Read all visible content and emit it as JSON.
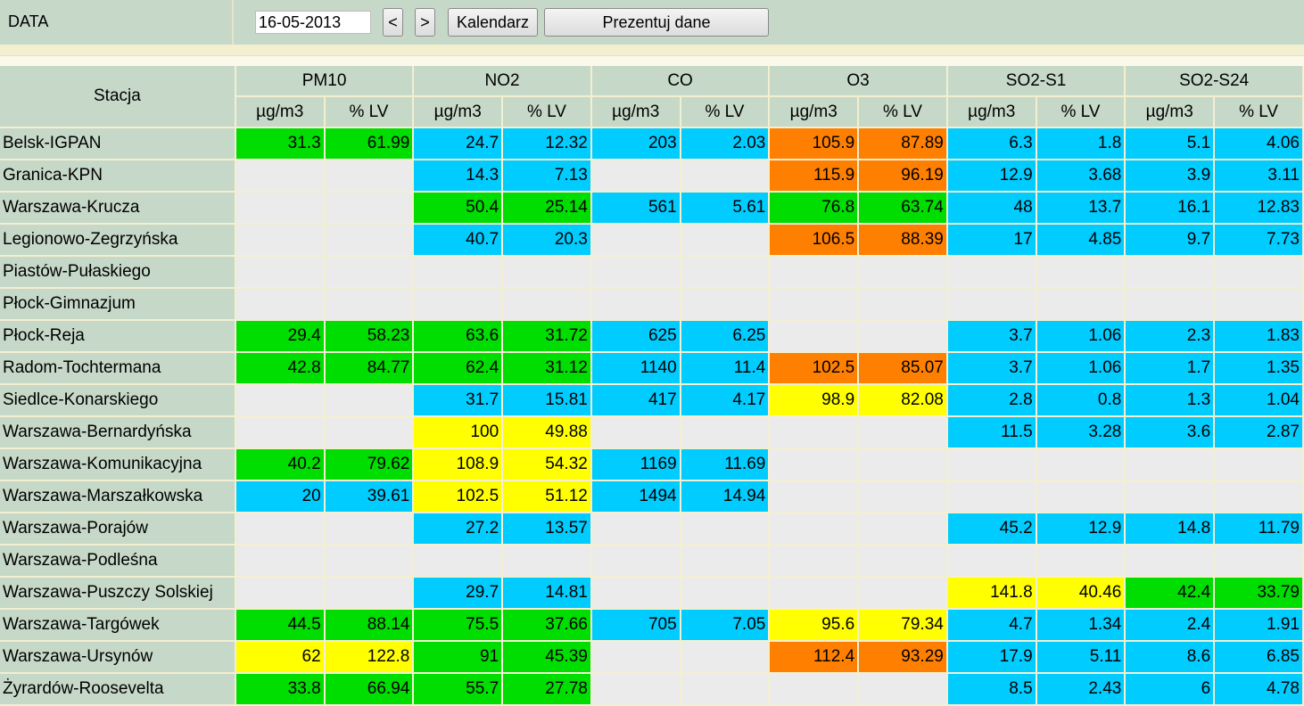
{
  "header": {
    "label": "DATA",
    "date_value": "16-05-2013",
    "prev_label": "<",
    "next_label": ">",
    "calendar_label": "Kalendarz",
    "show_label": "Prezentuj dane"
  },
  "table": {
    "station_header": "Stacja",
    "pollutants": [
      "PM10",
      "NO2",
      "CO",
      "O3",
      "SO2-S1",
      "SO2-S24"
    ],
    "unit_labels": [
      "µg/m3",
      "% LV"
    ],
    "level_colors": {
      "g": "#00dd00",
      "b": "#00ccff",
      "o": "#ff8000",
      "y": "#ffff00",
      "e": "#ebebeb"
    },
    "rows": [
      {
        "station": "Belsk-IGPAN",
        "cells": [
          [
            "31.3",
            "g"
          ],
          [
            "61.99",
            "g"
          ],
          [
            "24.7",
            "b"
          ],
          [
            "12.32",
            "b"
          ],
          [
            "203",
            "b"
          ],
          [
            "2.03",
            "b"
          ],
          [
            "105.9",
            "o"
          ],
          [
            "87.89",
            "o"
          ],
          [
            "6.3",
            "b"
          ],
          [
            "1.8",
            "b"
          ],
          [
            "5.1",
            "b"
          ],
          [
            "4.06",
            "b"
          ]
        ]
      },
      {
        "station": "Granica-KPN",
        "cells": [
          [
            "",
            "e"
          ],
          [
            "",
            "e"
          ],
          [
            "14.3",
            "b"
          ],
          [
            "7.13",
            "b"
          ],
          [
            "",
            "e"
          ],
          [
            "",
            "e"
          ],
          [
            "115.9",
            "o"
          ],
          [
            "96.19",
            "o"
          ],
          [
            "12.9",
            "b"
          ],
          [
            "3.68",
            "b"
          ],
          [
            "3.9",
            "b"
          ],
          [
            "3.11",
            "b"
          ]
        ]
      },
      {
        "station": "Warszawa-Krucza",
        "cells": [
          [
            "",
            "e"
          ],
          [
            "",
            "e"
          ],
          [
            "50.4",
            "g"
          ],
          [
            "25.14",
            "g"
          ],
          [
            "561",
            "b"
          ],
          [
            "5.61",
            "b"
          ],
          [
            "76.8",
            "g"
          ],
          [
            "63.74",
            "g"
          ],
          [
            "48",
            "b"
          ],
          [
            "13.7",
            "b"
          ],
          [
            "16.1",
            "b"
          ],
          [
            "12.83",
            "b"
          ]
        ]
      },
      {
        "station": "Legionowo-Zegrzyńska",
        "cells": [
          [
            "",
            "e"
          ],
          [
            "",
            "e"
          ],
          [
            "40.7",
            "b"
          ],
          [
            "20.3",
            "b"
          ],
          [
            "",
            "e"
          ],
          [
            "",
            "e"
          ],
          [
            "106.5",
            "o"
          ],
          [
            "88.39",
            "o"
          ],
          [
            "17",
            "b"
          ],
          [
            "4.85",
            "b"
          ],
          [
            "9.7",
            "b"
          ],
          [
            "7.73",
            "b"
          ]
        ]
      },
      {
        "station": "Piastów-Pułaskiego",
        "cells": [
          [
            "",
            "e"
          ],
          [
            "",
            "e"
          ],
          [
            "",
            "e"
          ],
          [
            "",
            "e"
          ],
          [
            "",
            "e"
          ],
          [
            "",
            "e"
          ],
          [
            "",
            "e"
          ],
          [
            "",
            "e"
          ],
          [
            "",
            "e"
          ],
          [
            "",
            "e"
          ],
          [
            "",
            "e"
          ],
          [
            "",
            "e"
          ]
        ]
      },
      {
        "station": "Płock-Gimnazjum",
        "cells": [
          [
            "",
            "e"
          ],
          [
            "",
            "e"
          ],
          [
            "",
            "e"
          ],
          [
            "",
            "e"
          ],
          [
            "",
            "e"
          ],
          [
            "",
            "e"
          ],
          [
            "",
            "e"
          ],
          [
            "",
            "e"
          ],
          [
            "",
            "e"
          ],
          [
            "",
            "e"
          ],
          [
            "",
            "e"
          ],
          [
            "",
            "e"
          ]
        ]
      },
      {
        "station": "Płock-Reja",
        "cells": [
          [
            "29.4",
            "g"
          ],
          [
            "58.23",
            "g"
          ],
          [
            "63.6",
            "g"
          ],
          [
            "31.72",
            "g"
          ],
          [
            "625",
            "b"
          ],
          [
            "6.25",
            "b"
          ],
          [
            "",
            "e"
          ],
          [
            "",
            "e"
          ],
          [
            "3.7",
            "b"
          ],
          [
            "1.06",
            "b"
          ],
          [
            "2.3",
            "b"
          ],
          [
            "1.83",
            "b"
          ]
        ]
      },
      {
        "station": "Radom-Tochtermana",
        "cells": [
          [
            "42.8",
            "g"
          ],
          [
            "84.77",
            "g"
          ],
          [
            "62.4",
            "g"
          ],
          [
            "31.12",
            "g"
          ],
          [
            "1140",
            "b"
          ],
          [
            "11.4",
            "b"
          ],
          [
            "102.5",
            "o"
          ],
          [
            "85.07",
            "o"
          ],
          [
            "3.7",
            "b"
          ],
          [
            "1.06",
            "b"
          ],
          [
            "1.7",
            "b"
          ],
          [
            "1.35",
            "b"
          ]
        ]
      },
      {
        "station": "Siedlce-Konarskiego",
        "cells": [
          [
            "",
            "e"
          ],
          [
            "",
            "e"
          ],
          [
            "31.7",
            "b"
          ],
          [
            "15.81",
            "b"
          ],
          [
            "417",
            "b"
          ],
          [
            "4.17",
            "b"
          ],
          [
            "98.9",
            "y"
          ],
          [
            "82.08",
            "y"
          ],
          [
            "2.8",
            "b"
          ],
          [
            "0.8",
            "b"
          ],
          [
            "1.3",
            "b"
          ],
          [
            "1.04",
            "b"
          ]
        ]
      },
      {
        "station": "Warszawa-Bernardyńska",
        "cells": [
          [
            "",
            "e"
          ],
          [
            "",
            "e"
          ],
          [
            "100",
            "y"
          ],
          [
            "49.88",
            "y"
          ],
          [
            "",
            "e"
          ],
          [
            "",
            "e"
          ],
          [
            "",
            "e"
          ],
          [
            "",
            "e"
          ],
          [
            "11.5",
            "b"
          ],
          [
            "3.28",
            "b"
          ],
          [
            "3.6",
            "b"
          ],
          [
            "2.87",
            "b"
          ]
        ]
      },
      {
        "station": "Warszawa-Komunikacyjna",
        "cells": [
          [
            "40.2",
            "g"
          ],
          [
            "79.62",
            "g"
          ],
          [
            "108.9",
            "y"
          ],
          [
            "54.32",
            "y"
          ],
          [
            "1169",
            "b"
          ],
          [
            "11.69",
            "b"
          ],
          [
            "",
            "e"
          ],
          [
            "",
            "e"
          ],
          [
            "",
            "e"
          ],
          [
            "",
            "e"
          ],
          [
            "",
            "e"
          ],
          [
            "",
            "e"
          ]
        ]
      },
      {
        "station": "Warszawa-Marszałkowska",
        "cells": [
          [
            "20",
            "b"
          ],
          [
            "39.61",
            "b"
          ],
          [
            "102.5",
            "y"
          ],
          [
            "51.12",
            "y"
          ],
          [
            "1494",
            "b"
          ],
          [
            "14.94",
            "b"
          ],
          [
            "",
            "e"
          ],
          [
            "",
            "e"
          ],
          [
            "",
            "e"
          ],
          [
            "",
            "e"
          ],
          [
            "",
            "e"
          ],
          [
            "",
            "e"
          ]
        ]
      },
      {
        "station": "Warszawa-Porajów",
        "cells": [
          [
            "",
            "e"
          ],
          [
            "",
            "e"
          ],
          [
            "27.2",
            "b"
          ],
          [
            "13.57",
            "b"
          ],
          [
            "",
            "e"
          ],
          [
            "",
            "e"
          ],
          [
            "",
            "e"
          ],
          [
            "",
            "e"
          ],
          [
            "45.2",
            "b"
          ],
          [
            "12.9",
            "b"
          ],
          [
            "14.8",
            "b"
          ],
          [
            "11.79",
            "b"
          ]
        ]
      },
      {
        "station": "Warszawa-Podleśna",
        "cells": [
          [
            "",
            "e"
          ],
          [
            "",
            "e"
          ],
          [
            "",
            "e"
          ],
          [
            "",
            "e"
          ],
          [
            "",
            "e"
          ],
          [
            "",
            "e"
          ],
          [
            "",
            "e"
          ],
          [
            "",
            "e"
          ],
          [
            "",
            "e"
          ],
          [
            "",
            "e"
          ],
          [
            "",
            "e"
          ],
          [
            "",
            "e"
          ]
        ]
      },
      {
        "station": "Warszawa-Puszczy Solskiej",
        "cells": [
          [
            "",
            "e"
          ],
          [
            "",
            "e"
          ],
          [
            "29.7",
            "b"
          ],
          [
            "14.81",
            "b"
          ],
          [
            "",
            "e"
          ],
          [
            "",
            "e"
          ],
          [
            "",
            "e"
          ],
          [
            "",
            "e"
          ],
          [
            "141.8",
            "y"
          ],
          [
            "40.46",
            "y"
          ],
          [
            "42.4",
            "g"
          ],
          [
            "33.79",
            "g"
          ]
        ]
      },
      {
        "station": "Warszawa-Targówek",
        "cells": [
          [
            "44.5",
            "g"
          ],
          [
            "88.14",
            "g"
          ],
          [
            "75.5",
            "g"
          ],
          [
            "37.66",
            "g"
          ],
          [
            "705",
            "b"
          ],
          [
            "7.05",
            "b"
          ],
          [
            "95.6",
            "y"
          ],
          [
            "79.34",
            "y"
          ],
          [
            "4.7",
            "b"
          ],
          [
            "1.34",
            "b"
          ],
          [
            "2.4",
            "b"
          ],
          [
            "1.91",
            "b"
          ]
        ]
      },
      {
        "station": "Warszawa-Ursynów",
        "cells": [
          [
            "62",
            "y"
          ],
          [
            "122.8",
            "y"
          ],
          [
            "91",
            "g"
          ],
          [
            "45.39",
            "g"
          ],
          [
            "",
            "e"
          ],
          [
            "",
            "e"
          ],
          [
            "112.4",
            "o"
          ],
          [
            "93.29",
            "o"
          ],
          [
            "17.9",
            "b"
          ],
          [
            "5.11",
            "b"
          ],
          [
            "8.6",
            "b"
          ],
          [
            "6.85",
            "b"
          ]
        ]
      },
      {
        "station": "Żyrardów-Roosevelta",
        "cells": [
          [
            "33.8",
            "g"
          ],
          [
            "66.94",
            "g"
          ],
          [
            "55.7",
            "g"
          ],
          [
            "27.78",
            "g"
          ],
          [
            "",
            "e"
          ],
          [
            "",
            "e"
          ],
          [
            "",
            "e"
          ],
          [
            "",
            "e"
          ],
          [
            "8.5",
            "b"
          ],
          [
            "2.43",
            "b"
          ],
          [
            "6",
            "b"
          ],
          [
            "4.78",
            "b"
          ]
        ]
      }
    ]
  }
}
